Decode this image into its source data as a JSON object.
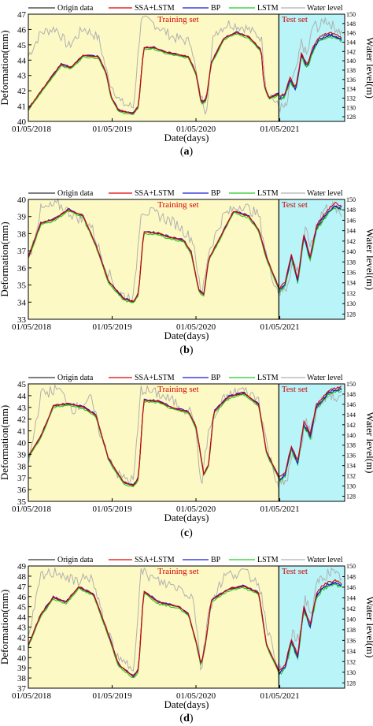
{
  "legend": {
    "origin": "Origin data",
    "ssa_lstm": "SSA+LSTM",
    "bp": "BP",
    "lstm": "LSTM",
    "water": "Water level"
  },
  "labels": {
    "training": "Training set",
    "test": "Test set",
    "xlabel": "Date(days)",
    "ylabel_left": "Deformation(mm)",
    "ylabel_right": "Water level(m)"
  },
  "colors": {
    "origin": "#333333",
    "ssa_lstm": "#e00000",
    "bp": "#1a1ad4",
    "lstm": "#22cc22",
    "water": "#b0b0b0",
    "train_bg": "#fdf9c4",
    "test_bg": "#b8f4f8"
  },
  "chart_data": [
    {
      "type": "line",
      "panel": "a",
      "x_ticks": [
        "01/05/2018",
        "01/05/2019",
        "01/05/2020",
        "01/05/2021"
      ],
      "ylim": [
        40,
        47
      ],
      "y_ticks": [
        "40",
        "41",
        "42",
        "43",
        "44",
        "45",
        "46",
        "47"
      ],
      "y2lim": [
        127,
        150
      ],
      "y2_ticks": [
        "128",
        "130",
        "132",
        "134",
        "136",
        "138",
        "140",
        "142",
        "144",
        "146",
        "148",
        "150"
      ],
      "train_test_split": "01/05/2021",
      "keypoints": [
        [
          0,
          40.8
        ],
        [
          0.08,
          42.6
        ],
        [
          0.13,
          43.7
        ],
        [
          0.17,
          43.5
        ],
        [
          0.22,
          44.3
        ],
        [
          0.28,
          44.2
        ],
        [
          0.31,
          43.2
        ],
        [
          0.33,
          41.6
        ],
        [
          0.36,
          40.7
        ],
        [
          0.42,
          40.5
        ],
        [
          0.44,
          41.0
        ],
        [
          0.46,
          44.8
        ],
        [
          0.5,
          44.8
        ],
        [
          0.55,
          44.5
        ],
        [
          0.64,
          44.2
        ],
        [
          0.67,
          43.1
        ],
        [
          0.69,
          41.2
        ],
        [
          0.71,
          41.4
        ],
        [
          0.73,
          43.8
        ],
        [
          0.78,
          45.4
        ],
        [
          0.83,
          45.8
        ],
        [
          0.88,
          45.5
        ],
        [
          0.93,
          44.6
        ],
        [
          0.94,
          42.4
        ],
        [
          0.96,
          41.5
        ],
        [
          1,
          41.8
        ]
      ],
      "test_keypoints": [
        [
          0,
          41.5
        ],
        [
          0.09,
          41.6
        ],
        [
          0.18,
          42.7
        ],
        [
          0.27,
          42.0
        ],
        [
          0.36,
          44.3
        ],
        [
          0.45,
          43.5
        ],
        [
          0.55,
          44.7
        ],
        [
          0.64,
          45.3
        ],
        [
          0.73,
          45.5
        ],
        [
          0.82,
          45.6
        ],
        [
          0.91,
          45.5
        ],
        [
          1,
          45.3
        ]
      ],
      "water_keypoints": [
        [
          0,
          141
        ],
        [
          0.05,
          146
        ],
        [
          0.11,
          147
        ],
        [
          0.16,
          143
        ],
        [
          0.22,
          147
        ],
        [
          0.28,
          145
        ],
        [
          0.32,
          136
        ],
        [
          0.37,
          131
        ],
        [
          0.42,
          130
        ],
        [
          0.45,
          149
        ],
        [
          0.5,
          148
        ],
        [
          0.58,
          145
        ],
        [
          0.65,
          144
        ],
        [
          0.68,
          134
        ],
        [
          0.71,
          129
        ],
        [
          0.74,
          146
        ],
        [
          0.8,
          148
        ],
        [
          0.87,
          147
        ],
        [
          0.93,
          145
        ],
        [
          0.95,
          134
        ],
        [
          1,
          130
        ]
      ],
      "test_water_keypoints": [
        [
          0,
          130
        ],
        [
          0.12,
          130
        ],
        [
          0.2,
          136
        ],
        [
          0.28,
          138
        ],
        [
          0.36,
          144
        ],
        [
          0.45,
          141
        ],
        [
          0.55,
          148
        ],
        [
          0.64,
          147
        ],
        [
          0.73,
          149
        ],
        [
          0.82,
          148
        ],
        [
          0.91,
          147
        ],
        [
          1,
          146
        ]
      ]
    },
    {
      "type": "line",
      "panel": "b",
      "x_ticks": [
        "01/05/2018",
        "01/05/2019",
        "01/05/2020",
        "01/05/2021"
      ],
      "ylim": [
        33,
        40
      ],
      "y_ticks": [
        "33",
        "34",
        "35",
        "36",
        "37",
        "38",
        "39",
        "40"
      ],
      "y2lim": [
        127,
        150
      ],
      "y2_ticks": [
        "128",
        "130",
        "132",
        "134",
        "136",
        "138",
        "140",
        "142",
        "144",
        "146",
        "148",
        "150"
      ],
      "train_test_split": "01/05/2021",
      "keypoints": [
        [
          0,
          36.6
        ],
        [
          0.05,
          38.6
        ],
        [
          0.1,
          38.8
        ],
        [
          0.16,
          39.4
        ],
        [
          0.22,
          39.0
        ],
        [
          0.27,
          37.3
        ],
        [
          0.32,
          35.2
        ],
        [
          0.38,
          34.2
        ],
        [
          0.42,
          34.0
        ],
        [
          0.44,
          34.5
        ],
        [
          0.46,
          38.1
        ],
        [
          0.52,
          38.0
        ],
        [
          0.56,
          37.8
        ],
        [
          0.62,
          37.6
        ],
        [
          0.65,
          36.9
        ],
        [
          0.68,
          34.7
        ],
        [
          0.7,
          34.4
        ],
        [
          0.72,
          36.5
        ],
        [
          0.76,
          37.6
        ],
        [
          0.82,
          39.3
        ],
        [
          0.88,
          39.0
        ],
        [
          0.92,
          38.2
        ],
        [
          0.95,
          36.6
        ],
        [
          1,
          34.8
        ]
      ],
      "test_keypoints": [
        [
          0,
          34.6
        ],
        [
          0.1,
          35.0
        ],
        [
          0.2,
          36.6
        ],
        [
          0.3,
          35.2
        ],
        [
          0.4,
          37.8
        ],
        [
          0.5,
          36.5
        ],
        [
          0.6,
          38.3
        ],
        [
          0.7,
          38.8
        ],
        [
          0.8,
          39.3
        ],
        [
          0.9,
          39.6
        ],
        [
          1,
          39.4
        ]
      ],
      "water_keypoints": [
        [
          0,
          138
        ],
        [
          0.05,
          148
        ],
        [
          0.12,
          149
        ],
        [
          0.18,
          147
        ],
        [
          0.25,
          145
        ],
        [
          0.3,
          138
        ],
        [
          0.36,
          132
        ],
        [
          0.42,
          131
        ],
        [
          0.45,
          148
        ],
        [
          0.52,
          147
        ],
        [
          0.6,
          145
        ],
        [
          0.66,
          142
        ],
        [
          0.69,
          131
        ],
        [
          0.72,
          140
        ],
        [
          0.78,
          147
        ],
        [
          0.85,
          149
        ],
        [
          0.92,
          147
        ],
        [
          0.96,
          137
        ],
        [
          1,
          132
        ]
      ],
      "test_water_keypoints": [
        [
          0,
          132
        ],
        [
          0.12,
          133
        ],
        [
          0.22,
          138
        ],
        [
          0.32,
          136
        ],
        [
          0.42,
          144
        ],
        [
          0.52,
          141
        ],
        [
          0.62,
          146
        ],
        [
          0.72,
          148
        ],
        [
          0.82,
          149
        ],
        [
          0.92,
          148
        ],
        [
          1,
          147
        ]
      ]
    },
    {
      "type": "line",
      "panel": "c",
      "x_ticks": [
        "01/05/2018",
        "01/05/2019",
        "01/05/2020",
        "01/05/2021"
      ],
      "ylim": [
        35,
        45
      ],
      "y_ticks": [
        "35",
        "36",
        "37",
        "38",
        "39",
        "40",
        "41",
        "42",
        "43",
        "44",
        "45"
      ],
      "y2lim": [
        127,
        150
      ],
      "y2_ticks": [
        "128",
        "130",
        "132",
        "134",
        "136",
        "138",
        "140",
        "142",
        "144",
        "146",
        "148",
        "150"
      ],
      "train_test_split": "01/05/2021",
      "keypoints": [
        [
          0,
          38.8
        ],
        [
          0.05,
          40.5
        ],
        [
          0.1,
          43.1
        ],
        [
          0.16,
          43.3
        ],
        [
          0.22,
          43.0
        ],
        [
          0.27,
          42.3
        ],
        [
          0.32,
          38.6
        ],
        [
          0.38,
          36.6
        ],
        [
          0.42,
          36.3
        ],
        [
          0.44,
          37.0
        ],
        [
          0.46,
          43.6
        ],
        [
          0.52,
          43.5
        ],
        [
          0.58,
          42.9
        ],
        [
          0.64,
          42.6
        ],
        [
          0.67,
          41.3
        ],
        [
          0.7,
          37.3
        ],
        [
          0.72,
          38.1
        ],
        [
          0.74,
          42.6
        ],
        [
          0.8,
          43.9
        ],
        [
          0.86,
          44.2
        ],
        [
          0.92,
          43.2
        ],
        [
          0.95,
          39.2
        ],
        [
          1,
          37.0
        ]
      ],
      "test_keypoints": [
        [
          0,
          36.8
        ],
        [
          0.1,
          37.2
        ],
        [
          0.2,
          39.5
        ],
        [
          0.3,
          38.2
        ],
        [
          0.4,
          41.5
        ],
        [
          0.5,
          40.5
        ],
        [
          0.6,
          43.0
        ],
        [
          0.7,
          43.6
        ],
        [
          0.8,
          44.2
        ],
        [
          0.9,
          44.4
        ],
        [
          1,
          44.5
        ]
      ],
      "water_keypoints": [
        [
          0,
          134
        ],
        [
          0.05,
          148
        ],
        [
          0.12,
          149
        ],
        [
          0.18,
          145
        ],
        [
          0.25,
          147
        ],
        [
          0.3,
          138
        ],
        [
          0.36,
          132
        ],
        [
          0.42,
          131
        ],
        [
          0.45,
          149
        ],
        [
          0.52,
          148
        ],
        [
          0.6,
          146
        ],
        [
          0.66,
          144
        ],
        [
          0.69,
          130
        ],
        [
          0.72,
          141
        ],
        [
          0.78,
          147
        ],
        [
          0.85,
          149
        ],
        [
          0.92,
          147
        ],
        [
          0.96,
          136
        ],
        [
          1,
          130
        ]
      ],
      "test_water_keypoints": [
        [
          0,
          130
        ],
        [
          0.12,
          131
        ],
        [
          0.22,
          136
        ],
        [
          0.32,
          135
        ],
        [
          0.42,
          143
        ],
        [
          0.52,
          140
        ],
        [
          0.62,
          146
        ],
        [
          0.72,
          147
        ],
        [
          0.82,
          148
        ],
        [
          0.92,
          147
        ],
        [
          1,
          147
        ]
      ]
    },
    {
      "type": "line",
      "panel": "d",
      "x_ticks": [
        "01/05/2018",
        "01/05/2019",
        "01/05/2020",
        "01/05/2021"
      ],
      "ylim": [
        37,
        49
      ],
      "y_ticks": [
        "37",
        "38",
        "39",
        "40",
        "41",
        "42",
        "43",
        "44",
        "45",
        "46",
        "47",
        "48",
        "49"
      ],
      "y2lim": [
        127,
        150
      ],
      "y2_ticks": [
        "128",
        "130",
        "132",
        "134",
        "136",
        "138",
        "140",
        "142",
        "144",
        "146",
        "148",
        "150"
      ],
      "train_test_split": "01/05/2021",
      "keypoints": [
        [
          0,
          41.2
        ],
        [
          0.05,
          44.2
        ],
        [
          0.1,
          45.9
        ],
        [
          0.15,
          45.4
        ],
        [
          0.2,
          46.9
        ],
        [
          0.26,
          46.2
        ],
        [
          0.31,
          42.9
        ],
        [
          0.36,
          39.3
        ],
        [
          0.42,
          38.1
        ],
        [
          0.44,
          38.8
        ],
        [
          0.46,
          46.5
        ],
        [
          0.52,
          45.4
        ],
        [
          0.6,
          45.0
        ],
        [
          0.64,
          44.2
        ],
        [
          0.67,
          41.5
        ],
        [
          0.69,
          39.2
        ],
        [
          0.71,
          41.8
        ],
        [
          0.73,
          45.6
        ],
        [
          0.8,
          46.7
        ],
        [
          0.86,
          47.0
        ],
        [
          0.92,
          46.3
        ],
        [
          0.95,
          41.3
        ],
        [
          1,
          38.6
        ]
      ],
      "test_keypoints": [
        [
          0,
          38.4
        ],
        [
          0.1,
          39.0
        ],
        [
          0.2,
          41.5
        ],
        [
          0.3,
          40.0
        ],
        [
          0.4,
          44.7
        ],
        [
          0.5,
          43.0
        ],
        [
          0.6,
          46.0
        ],
        [
          0.7,
          46.8
        ],
        [
          0.8,
          47.1
        ],
        [
          0.9,
          47.3
        ],
        [
          1,
          47.0
        ]
      ],
      "water_keypoints": [
        [
          0,
          136
        ],
        [
          0.05,
          148
        ],
        [
          0.12,
          149
        ],
        [
          0.18,
          147
        ],
        [
          0.25,
          148
        ],
        [
          0.3,
          140
        ],
        [
          0.36,
          132
        ],
        [
          0.42,
          131
        ],
        [
          0.45,
          149
        ],
        [
          0.52,
          147
        ],
        [
          0.6,
          146
        ],
        [
          0.66,
          144
        ],
        [
          0.69,
          130
        ],
        [
          0.72,
          142
        ],
        [
          0.78,
          148
        ],
        [
          0.85,
          149
        ],
        [
          0.92,
          147
        ],
        [
          0.96,
          137
        ],
        [
          1,
          131
        ]
      ],
      "test_water_keypoints": [
        [
          0,
          130
        ],
        [
          0.12,
          131
        ],
        [
          0.22,
          137
        ],
        [
          0.32,
          136
        ],
        [
          0.42,
          144
        ],
        [
          0.52,
          141
        ],
        [
          0.62,
          147
        ],
        [
          0.72,
          148
        ],
        [
          0.82,
          149
        ],
        [
          0.92,
          148
        ],
        [
          1,
          148
        ]
      ]
    }
  ]
}
